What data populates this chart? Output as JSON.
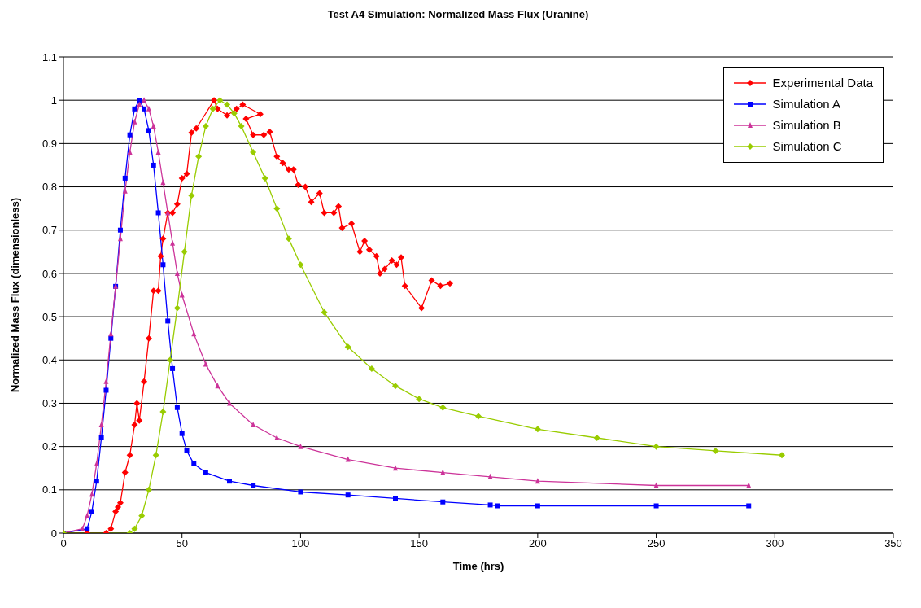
{
  "chart_data": {
    "type": "line",
    "title": "Test A4 Simulation: Normalized Mass Flux (Uranine)",
    "xlabel": "Time (hrs)",
    "ylabel": "Normalized Mass Flux (dimensionless)",
    "xlim": [
      0,
      350
    ],
    "xticks": [
      0,
      50,
      100,
      150,
      200,
      250,
      300,
      350
    ],
    "ylim": [
      0,
      1.1
    ],
    "yticks": [
      0,
      0.1,
      0.2,
      0.3,
      0.4,
      0.5,
      0.6,
      0.7,
      0.8,
      0.9,
      1,
      1.1
    ],
    "grid": "y",
    "legend": "top right",
    "series": [
      {
        "name": "Experimental Data",
        "color": "#ff0000",
        "marker": "diamond",
        "x": [
          0,
          10,
          18,
          20,
          22,
          23,
          24,
          26,
          28,
          30,
          31,
          32,
          34,
          36,
          38,
          40,
          41,
          42,
          44,
          46,
          48,
          50,
          52,
          54,
          56,
          63.5,
          65,
          69,
          73,
          75.6,
          83,
          77,
          80,
          84.5,
          87,
          90,
          92.5,
          95,
          97,
          99,
          102,
          104.5,
          108,
          110,
          114,
          116,
          117.5,
          121.5,
          125,
          127,
          129,
          132,
          133.5,
          135.5,
          138.5,
          140.5,
          142.4,
          144,
          151,
          155.3,
          159,
          163
        ],
        "values": [
          0,
          0,
          0,
          0.01,
          0.05,
          0.06,
          0.07,
          0.14,
          0.18,
          0.25,
          0.3,
          0.26,
          0.35,
          0.45,
          0.56,
          0.56,
          0.64,
          0.68,
          0.74,
          0.74,
          0.76,
          0.82,
          0.83,
          0.925,
          0.935,
          1,
          0.98,
          0.965,
          0.98,
          0.99,
          0.968,
          0.957,
          0.92,
          0.92,
          0.927,
          0.87,
          0.855,
          0.84,
          0.84,
          0.805,
          0.8,
          0.765,
          0.785,
          0.74,
          0.74,
          0.755,
          0.705,
          0.715,
          0.65,
          0.675,
          0.655,
          0.64,
          0.6,
          0.61,
          0.63,
          0.62,
          0.637,
          0.571,
          0.52,
          0.584,
          0.571,
          0.577
        ]
      },
      {
        "name": "Simulation A",
        "color": "#0000ff",
        "marker": "square",
        "x": [
          0,
          10,
          12,
          14,
          16,
          18,
          20,
          22,
          24,
          26,
          28,
          30,
          32,
          34,
          36,
          38,
          40,
          42,
          44,
          46,
          48,
          50,
          52,
          55,
          60,
          70,
          80,
          100,
          120,
          140,
          160,
          180,
          183,
          200,
          250,
          289
        ],
        "values": [
          0,
          0.01,
          0.05,
          0.12,
          0.22,
          0.33,
          0.45,
          0.57,
          0.7,
          0.82,
          0.92,
          0.98,
          1,
          0.98,
          0.93,
          0.85,
          0.74,
          0.62,
          0.49,
          0.38,
          0.29,
          0.23,
          0.19,
          0.16,
          0.14,
          0.12,
          0.11,
          0.095,
          0.088,
          0.08,
          0.072,
          0.065,
          0.063,
          0.063,
          0.063,
          0.063
        ]
      },
      {
        "name": "Simulation B",
        "color": "#cc3399",
        "marker": "triangle",
        "x": [
          0,
          8,
          10,
          12,
          14,
          16,
          18,
          20,
          22,
          24,
          26,
          28,
          30,
          32,
          34,
          36,
          38,
          40,
          42,
          44,
          46,
          48,
          50,
          55,
          60,
          65,
          70,
          80,
          90,
          100,
          120,
          140,
          160,
          180,
          200,
          250,
          289
        ],
        "values": [
          0,
          0.01,
          0.04,
          0.09,
          0.16,
          0.25,
          0.35,
          0.46,
          0.57,
          0.68,
          0.79,
          0.88,
          0.95,
          0.99,
          1,
          0.98,
          0.94,
          0.88,
          0.81,
          0.74,
          0.67,
          0.6,
          0.55,
          0.46,
          0.39,
          0.34,
          0.3,
          0.25,
          0.22,
          0.2,
          0.17,
          0.15,
          0.14,
          0.13,
          0.12,
          0.11,
          0.11
        ]
      },
      {
        "name": "Simulation C",
        "color": "#99cc00",
        "marker": "diamond",
        "x": [
          0,
          28,
          30,
          33,
          36,
          39,
          42,
          45,
          48,
          51,
          54,
          57,
          60,
          63,
          66,
          69,
          72,
          75,
          80,
          85,
          90,
          95,
          100,
          110,
          120,
          130,
          140,
          150,
          160,
          175,
          200,
          225,
          250,
          275,
          303
        ],
        "values": [
          0,
          0,
          0.01,
          0.04,
          0.1,
          0.18,
          0.28,
          0.4,
          0.52,
          0.65,
          0.78,
          0.87,
          0.94,
          0.98,
          1,
          0.99,
          0.97,
          0.94,
          0.88,
          0.82,
          0.75,
          0.68,
          0.62,
          0.51,
          0.43,
          0.38,
          0.34,
          0.31,
          0.29,
          0.27,
          0.24,
          0.22,
          0.2,
          0.19,
          0.18
        ]
      }
    ]
  }
}
